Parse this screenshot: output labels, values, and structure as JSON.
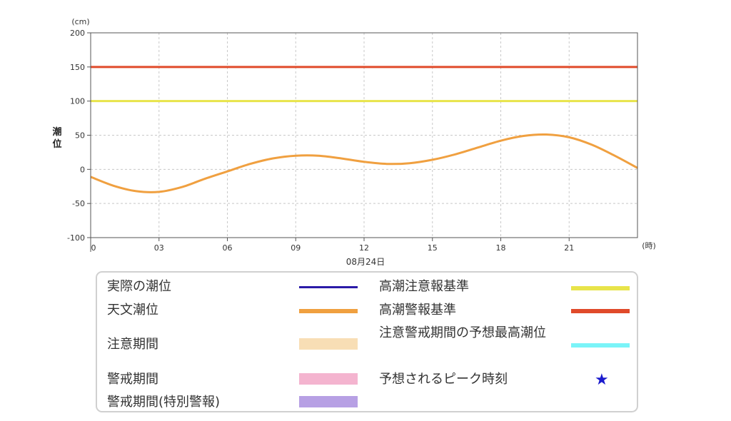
{
  "chart_data": {
    "type": "line",
    "y_unit": "(cm)",
    "x_unit": "(時)",
    "ylabel": "潮位",
    "date_label": "08月24日",
    "ylim": [
      -100,
      200
    ],
    "yticks": [
      200,
      150,
      100,
      50,
      0,
      -50,
      -100
    ],
    "xlim": [
      0,
      24
    ],
    "xticks": [
      {
        "x": 0,
        "label": "0"
      },
      {
        "x": 3,
        "label": "03"
      },
      {
        "x": 6,
        "label": "06"
      },
      {
        "x": 9,
        "label": "09"
      },
      {
        "x": 12,
        "label": "12"
      },
      {
        "x": 15,
        "label": "15"
      },
      {
        "x": 18,
        "label": "18"
      },
      {
        "x": 21,
        "label": "21"
      }
    ],
    "grid": true,
    "reference_lines": [
      {
        "name": "高潮警報基準",
        "y": 150,
        "color": "#e04a2a"
      },
      {
        "name": "高潮注意報基準",
        "y": 100,
        "color": "#e8e44a"
      }
    ],
    "series": [
      {
        "name": "天文潮位",
        "color": "#f0a040",
        "x": [
          0,
          1,
          2,
          3,
          4,
          5,
          6,
          7,
          8,
          9,
          10,
          11,
          12,
          13,
          14,
          15,
          16,
          17,
          18,
          19,
          20,
          21,
          22,
          23,
          24
        ],
        "y": [
          -11,
          -24,
          -32,
          -33,
          -26,
          -14,
          -3,
          8,
          16,
          20,
          20,
          16,
          11,
          8,
          9,
          14,
          22,
          32,
          42,
          49,
          51,
          47,
          36,
          20,
          2
        ]
      }
    ]
  },
  "legend": {
    "items": [
      {
        "label": "実際の潮位",
        "type": "line",
        "color": "#2a1aa8"
      },
      {
        "label": "高潮注意報基準",
        "type": "line",
        "color": "#e8e44a"
      },
      {
        "label": "天文潮位",
        "type": "line",
        "color": "#f0a040"
      },
      {
        "label": "高潮警報基準",
        "type": "line",
        "color": "#e04a2a"
      },
      {
        "label": "注意期間",
        "type": "box",
        "color": "#f8deb5"
      },
      {
        "label": "注意警戒期間の予想最高潮位",
        "type": "line",
        "color": "#7af4f8"
      },
      {
        "label": "警戒期間",
        "type": "box",
        "color": "#f4b4cf"
      },
      {
        "label": "予想されるピーク時刻",
        "type": "star",
        "color": "#1a1acd",
        "symbol": "★"
      },
      {
        "label": "警戒期間(特別警報)",
        "type": "box",
        "color": "#b7a0e4"
      }
    ]
  }
}
